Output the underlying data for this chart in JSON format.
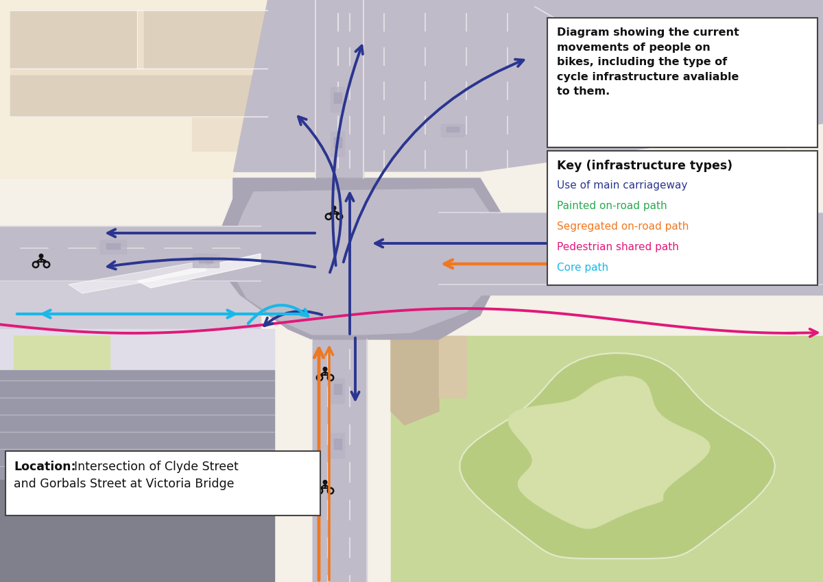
{
  "bg_color": "#f5f0e8",
  "beige_light": "#f5eedd",
  "beige_building": "#ede0cc",
  "beige_mid": "#ddd0bc",
  "tan": "#c8b898",
  "road_main": "#c0bbc8",
  "road_dark": "#aaa5b5",
  "road_junction": "#b8b3c2",
  "road_light": "#d0ccd8",
  "footpath": "#e0dce8",
  "white": "#ffffff",
  "grass_light": "#d4e0a8",
  "grass_dark": "#b8cc80",
  "grass_park": "#c8d898",
  "grey_bldg": "#9898a8",
  "grey_dark": "#80808c",
  "navy": "#2a3590",
  "orange": "#f07820",
  "pink": "#e0187a",
  "cyan": "#18b8e8",
  "green": "#28aa50",
  "black": "#111111",
  "car_body": "#b8b4c4",
  "car_roof": "#a8a4b8",
  "title_text": "Diagram showing the current\nmovements of people on\nbikes, including the type of\ncycle infrastructure avaliable\nto them.",
  "key_title": "Key (infrastructure types)",
  "key_items": [
    {
      "label": "Use of main carriageway",
      "color": "#2a3590"
    },
    {
      "label": "Painted on-road path",
      "color": "#28aa50"
    },
    {
      "label": "Segregated on-road path",
      "color": "#f07820"
    },
    {
      "label": "Pedestrian shared path",
      "color": "#e0187a"
    },
    {
      "label": "Core path",
      "color": "#18b8e8"
    }
  ],
  "loc_bold": "Location:",
  "loc_text": " Intersection of Clyde Street\nand Gorbals Street at Victoria Bridge"
}
